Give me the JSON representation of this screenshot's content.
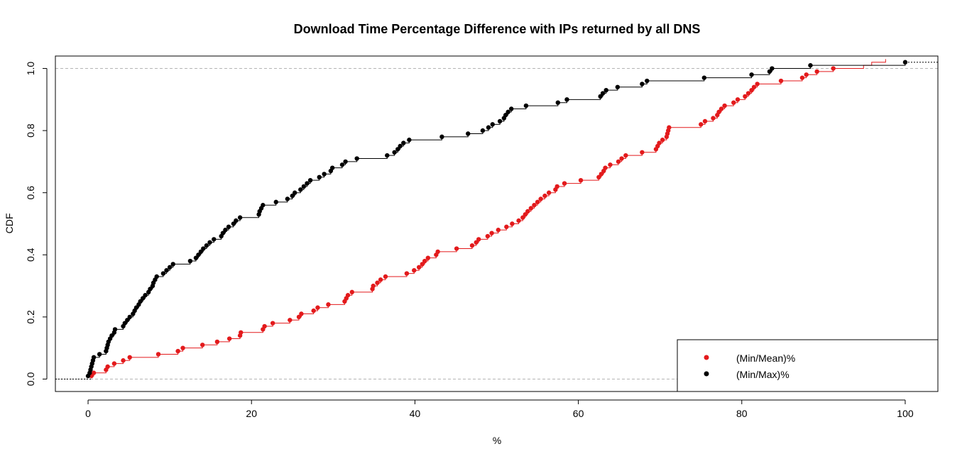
{
  "chart_data": {
    "type": "step-cdf",
    "title": "Download Time Percentage Difference with IPs returned by all DNS",
    "xlabel": "%",
    "ylabel": "CDF",
    "xlim": [
      -4,
      104
    ],
    "ylim": [
      -0.04,
      1.04
    ],
    "xticks": [
      0,
      20,
      40,
      60,
      80,
      100
    ],
    "yticks": [
      0.0,
      0.2,
      0.4,
      0.6,
      0.8,
      1.0
    ],
    "xtick_labels": [
      "0",
      "20",
      "40",
      "60",
      "80",
      "100"
    ],
    "ytick_labels": [
      "0.0",
      "0.2",
      "0.4",
      "0.6",
      "0.8",
      "1.0"
    ],
    "reference_lines_y": [
      0,
      1
    ],
    "legend_position": "bottom-right",
    "series": [
      {
        "name": "(Min/Mean)%",
        "color": "#e31a1c",
        "x": [
          0.4,
          0.7,
          2.2,
          2.4,
          3.2,
          4.3,
          5.1,
          8.6,
          11.0,
          11.6,
          14.0,
          15.8,
          17.3,
          18.6,
          18.7,
          21.4,
          21.6,
          22.6,
          24.7,
          25.8,
          26.1,
          27.6,
          28.1,
          29.4,
          31.4,
          31.6,
          31.8,
          32.3,
          34.8,
          34.9,
          35.4,
          35.8,
          36.4,
          39.0,
          39.9,
          40.5,
          40.9,
          41.2,
          41.6,
          42.6,
          42.8,
          45.1,
          47.0,
          47.5,
          47.8,
          48.9,
          49.4,
          50.2,
          51.2,
          51.9,
          52.7,
          53.2,
          53.5,
          53.8,
          54.2,
          54.6,
          55.0,
          55.4,
          55.9,
          56.4,
          57.2,
          57.4,
          58.3,
          60.3,
          62.5,
          62.8,
          63.1,
          63.3,
          63.9,
          64.9,
          65.3,
          65.8,
          67.8,
          69.5,
          69.7,
          69.9,
          70.3,
          70.8,
          70.9,
          71.0,
          71.1,
          75.0,
          75.5,
          76.5,
          77.0,
          77.2,
          77.5,
          77.9,
          79.0,
          79.5,
          80.4,
          80.8,
          81.2,
          81.5,
          81.9,
          84.8,
          87.4,
          87.9,
          89.2,
          91.2,
          94.9,
          95.9,
          97.6
        ],
        "y": [
          0.01,
          0.02,
          0.03,
          0.04,
          0.05,
          0.06,
          0.07,
          0.08,
          0.09,
          0.1,
          0.11,
          0.12,
          0.13,
          0.14,
          0.15,
          0.16,
          0.17,
          0.18,
          0.19,
          0.2,
          0.21,
          0.22,
          0.23,
          0.24,
          0.25,
          0.26,
          0.27,
          0.28,
          0.29,
          0.3,
          0.31,
          0.32,
          0.33,
          0.34,
          0.35,
          0.36,
          0.37,
          0.38,
          0.39,
          0.4,
          0.41,
          0.42,
          0.43,
          0.44,
          0.45,
          0.46,
          0.47,
          0.48,
          0.49,
          0.5,
          0.51,
          0.52,
          0.53,
          0.54,
          0.55,
          0.56,
          0.57,
          0.58,
          0.59,
          0.6,
          0.61,
          0.62,
          0.63,
          0.64,
          0.65,
          0.66,
          0.67,
          0.68,
          0.69,
          0.7,
          0.71,
          0.72,
          0.73,
          0.74,
          0.75,
          0.76,
          0.77,
          0.78,
          0.79,
          0.8,
          0.81,
          0.82,
          0.83,
          0.84,
          0.85,
          0.86,
          0.87,
          0.88,
          0.89,
          0.9,
          0.91,
          0.92,
          0.93,
          0.94,
          0.95,
          0.96,
          0.97,
          0.98,
          0.99,
          1.0,
          1.01,
          1.02,
          1.03
        ]
      },
      {
        "name": "(Min/Max)%",
        "color": "#000000",
        "x": [
          0.0,
          0.2,
          0.3,
          0.4,
          0.5,
          0.6,
          0.7,
          1.4,
          2.2,
          2.3,
          2.4,
          2.5,
          2.7,
          2.9,
          3.2,
          3.3,
          4.3,
          4.5,
          4.8,
          5.1,
          5.5,
          5.7,
          5.9,
          6.2,
          6.4,
          6.7,
          7.0,
          7.4,
          7.6,
          7.9,
          8.0,
          8.2,
          8.4,
          9.2,
          9.6,
          10.0,
          10.4,
          12.5,
          13.2,
          13.5,
          13.8,
          14.1,
          14.5,
          14.9,
          15.4,
          16.3,
          16.5,
          16.8,
          17.2,
          17.8,
          18.1,
          18.6,
          20.9,
          21.0,
          21.2,
          21.4,
          23.0,
          24.4,
          25.0,
          25.3,
          26.0,
          26.4,
          26.8,
          27.2,
          28.3,
          28.9,
          29.7,
          29.9,
          31.1,
          31.5,
          32.9,
          36.6,
          37.5,
          37.9,
          38.2,
          38.6,
          39.3,
          43.3,
          46.5,
          48.3,
          49.0,
          49.5,
          50.4,
          50.9,
          51.1,
          51.4,
          51.8,
          53.6,
          57.5,
          58.6,
          62.7,
          63.0,
          63.4,
          64.8,
          67.8,
          68.4,
          75.4,
          81.2,
          83.4,
          83.7,
          88.4,
          100.0
        ],
        "y": [
          0.01,
          0.02,
          0.03,
          0.04,
          0.05,
          0.06,
          0.07,
          0.08,
          0.09,
          0.1,
          0.11,
          0.12,
          0.13,
          0.14,
          0.15,
          0.16,
          0.17,
          0.18,
          0.19,
          0.2,
          0.21,
          0.22,
          0.23,
          0.24,
          0.25,
          0.26,
          0.27,
          0.28,
          0.29,
          0.3,
          0.31,
          0.32,
          0.33,
          0.34,
          0.35,
          0.36,
          0.37,
          0.38,
          0.39,
          0.4,
          0.41,
          0.42,
          0.43,
          0.44,
          0.45,
          0.46,
          0.47,
          0.48,
          0.49,
          0.5,
          0.51,
          0.52,
          0.53,
          0.54,
          0.55,
          0.56,
          0.57,
          0.58,
          0.59,
          0.6,
          0.61,
          0.62,
          0.63,
          0.64,
          0.65,
          0.66,
          0.67,
          0.68,
          0.69,
          0.7,
          0.71,
          0.72,
          0.73,
          0.74,
          0.75,
          0.76,
          0.77,
          0.78,
          0.79,
          0.8,
          0.81,
          0.82,
          0.83,
          0.84,
          0.85,
          0.86,
          0.87,
          0.88,
          0.89,
          0.9,
          0.91,
          0.92,
          0.93,
          0.94,
          0.95,
          0.96,
          0.97,
          0.98,
          0.99,
          1.0,
          1.01,
          1.02
        ]
      }
    ]
  }
}
